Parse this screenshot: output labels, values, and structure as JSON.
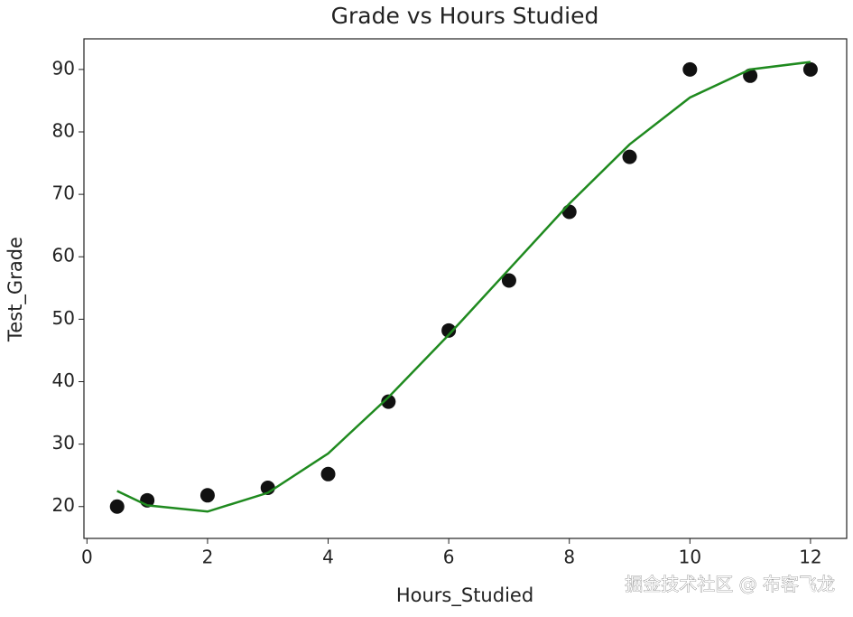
{
  "chart_data": {
    "type": "scatter",
    "title": "Grade vs Hours Studied",
    "x_label": "Hours_Studied",
    "y_label": "Test_Grade",
    "annotation": "掘金技术社区 @ 布客飞龙",
    "xlim": [
      -0.05,
      12.6
    ],
    "xticks": [
      0,
      2,
      4,
      6,
      8,
      10,
      12
    ],
    "ylim": [
      14.9,
      94.9
    ],
    "yticks": [
      20,
      30,
      40,
      50,
      60,
      70,
      80,
      90
    ],
    "series": [
      {
        "type": "scatter",
        "color": "#111111",
        "x": [
          0.5,
          1,
          2,
          3,
          4,
          5,
          6,
          7,
          8,
          9,
          10,
          11,
          12
        ],
        "values": [
          20,
          21,
          21.8,
          23,
          25.2,
          36.8,
          48.2,
          56.2,
          67.2,
          76,
          90,
          89,
          90
        ]
      },
      {
        "type": "line",
        "color": "#1f8a1f",
        "x": [
          0.5,
          1,
          2,
          3,
          4,
          5,
          6,
          7,
          8,
          9,
          10,
          11,
          12
        ],
        "values": [
          22.5,
          20.2,
          19.2,
          22.2,
          28.5,
          37.5,
          47.5,
          58,
          68.5,
          78,
          85.5,
          90,
          91.2
        ]
      }
    ]
  }
}
